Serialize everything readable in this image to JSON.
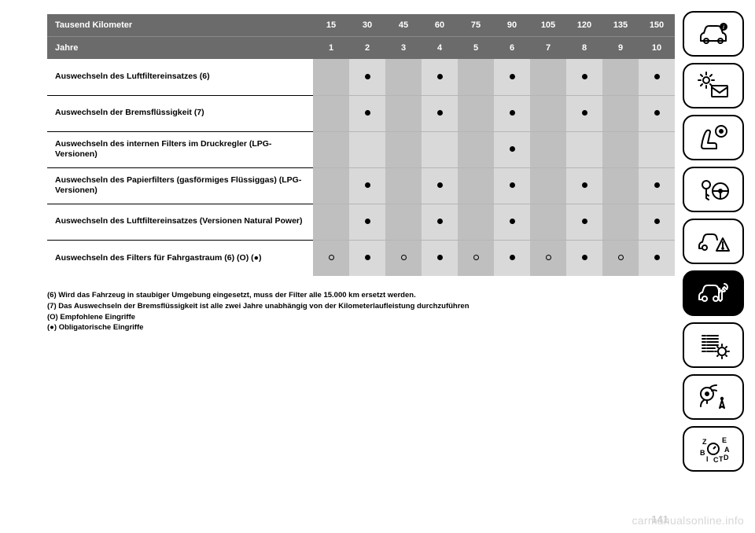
{
  "table": {
    "header_bg": "#6b6b6b",
    "header_fg": "#ffffff",
    "col_bg_odd": "#bfbfbf",
    "col_bg_even": "#d9d9d9",
    "label_border": "#000000",
    "cell_border": "#b5b5b5",
    "label_fontsize": 10.5,
    "header_fontsize": 11,
    "dot_color": "#000000",
    "header_rows": [
      {
        "label": "Tausend Kilometer",
        "values": [
          "15",
          "30",
          "45",
          "60",
          "75",
          "90",
          "105",
          "120",
          "135",
          "150"
        ]
      },
      {
        "label": "Jahre",
        "values": [
          "1",
          "2",
          "3",
          "4",
          "5",
          "6",
          "7",
          "8",
          "9",
          "10"
        ]
      }
    ],
    "rows": [
      {
        "label": "Auswechseln des Luftfiltereinsatzes (6)",
        "marks": [
          "",
          "dot",
          "",
          "dot",
          "",
          "dot",
          "",
          "dot",
          "",
          "dot"
        ]
      },
      {
        "label": "Auswechseln der Bremsflüssigkeit (7)",
        "marks": [
          "",
          "dot",
          "",
          "dot",
          "",
          "dot",
          "",
          "dot",
          "",
          "dot"
        ]
      },
      {
        "label": "Auswechseln des internen Filters im Druckregler (LPG-Versionen)",
        "marks": [
          "",
          "",
          "",
          "",
          "",
          "dot",
          "",
          "",
          "",
          ""
        ]
      },
      {
        "label": "Auswechseln des Papierfilters (gasförmiges Flüssiggas) (LPG-Versionen)",
        "marks": [
          "",
          "dot",
          "",
          "dot",
          "",
          "dot",
          "",
          "dot",
          "",
          "dot"
        ]
      },
      {
        "label": "Auswechseln des Luftfiltereinsatzes (Versionen Natural Power)",
        "marks": [
          "",
          "dot",
          "",
          "dot",
          "",
          "dot",
          "",
          "dot",
          "",
          "dot"
        ]
      },
      {
        "label": "Auswechseln des Filters für Fahrgastraum (6) (O) (●)",
        "marks": [
          "ring",
          "dot",
          "ring",
          "dot",
          "ring",
          "dot",
          "ring",
          "dot",
          "ring",
          "dot"
        ]
      }
    ]
  },
  "footnotes": [
    "(6) Wird das Fahrzeug in staubiger Umgebung eingesetzt, muss der Filter alle 15.000 km ersetzt werden.",
    "(7) Das Auswechseln der Bremsflüssigkeit ist alle zwei Jahre unabhängig von der Kilometerlaufleistung durchzuführen",
    "(O) Empfohlene Eingriffe",
    "(●) Obligatorische Eingriffe"
  ],
  "page_number": "141",
  "watermark": "carmanualsonline.info",
  "rail": {
    "border_color": "#000000",
    "border_radius": 14,
    "tiles": [
      {
        "name": "car-info-icon",
        "active": false
      },
      {
        "name": "light-mail-icon",
        "active": false
      },
      {
        "name": "seat-airbag-icon",
        "active": false
      },
      {
        "name": "key-wheel-icon",
        "active": false
      },
      {
        "name": "car-warning-icon",
        "active": false
      },
      {
        "name": "car-wrench-icon",
        "active": true
      },
      {
        "name": "list-gear-icon",
        "active": false
      },
      {
        "name": "media-nav-icon",
        "active": false
      },
      {
        "name": "gear-letters-icon",
        "active": false
      }
    ]
  }
}
